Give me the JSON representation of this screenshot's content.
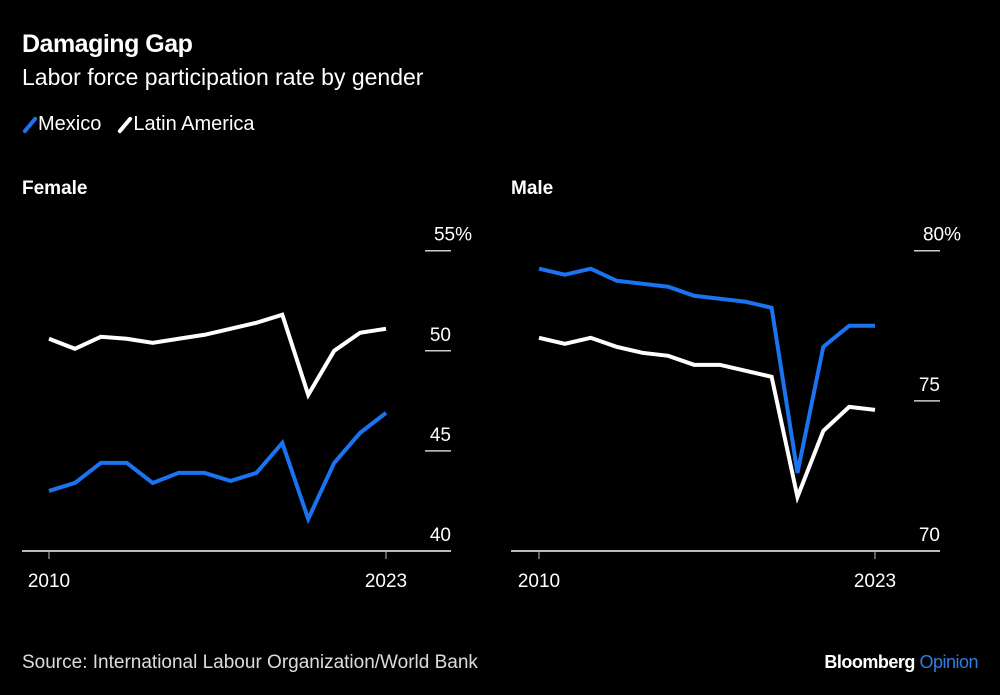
{
  "colors": {
    "mexico": "#1a73f0",
    "latin_america": "#ffffff",
    "axis": "#bbbbbb",
    "brand_accent": "#2f7de1"
  },
  "header": {
    "title": "Damaging Gap",
    "subtitle": "Labor force participation rate by gender"
  },
  "legend": [
    {
      "label": "Mexico",
      "color": "#1a73f0"
    },
    {
      "label": "Latin America",
      "color": "#ffffff"
    }
  ],
  "footer": {
    "source": "Source: International Labour Organization/World Bank",
    "brand": "Bloomberg",
    "brand_accent": "Opinion"
  },
  "chart_data": [
    {
      "type": "line",
      "title": "Female",
      "x": [
        2010,
        2011,
        2012,
        2013,
        2014,
        2015,
        2016,
        2017,
        2018,
        2019,
        2020,
        2021,
        2022,
        2023
      ],
      "x_tick_labels": [
        "2010",
        "2023"
      ],
      "y_ticks": [
        40,
        45,
        50,
        55
      ],
      "y_tick_labels": [
        "40",
        "45",
        "50",
        "55%"
      ],
      "ylim": [
        40,
        55
      ],
      "series": [
        {
          "name": "Mexico",
          "values": [
            43.0,
            43.4,
            44.4,
            44.4,
            43.4,
            43.9,
            43.9,
            43.5,
            43.9,
            45.4,
            41.6,
            44.4,
            45.9,
            46.9
          ]
        },
        {
          "name": "Latin America",
          "values": [
            50.6,
            50.1,
            50.7,
            50.6,
            50.4,
            50.6,
            50.8,
            51.1,
            51.4,
            51.8,
            47.8,
            50.0,
            50.9,
            51.1
          ]
        }
      ]
    },
    {
      "type": "line",
      "title": "Male",
      "x": [
        2010,
        2011,
        2012,
        2013,
        2014,
        2015,
        2016,
        2017,
        2018,
        2019,
        2020,
        2021,
        2022,
        2023
      ],
      "x_tick_labels": [
        "2010",
        "2023"
      ],
      "y_ticks": [
        70,
        75,
        80
      ],
      "y_tick_labels": [
        "70",
        "75",
        "80%"
      ],
      "ylim": [
        70,
        80
      ],
      "series": [
        {
          "name": "Mexico",
          "values": [
            79.4,
            79.2,
            79.4,
            79.0,
            78.9,
            78.8,
            78.5,
            78.4,
            78.3,
            78.1,
            72.6,
            76.8,
            77.5,
            77.5
          ]
        },
        {
          "name": "Latin America",
          "values": [
            77.1,
            76.9,
            77.1,
            76.8,
            76.6,
            76.5,
            76.2,
            76.2,
            76.0,
            75.8,
            71.8,
            74.0,
            74.8,
            74.7
          ]
        }
      ]
    }
  ]
}
